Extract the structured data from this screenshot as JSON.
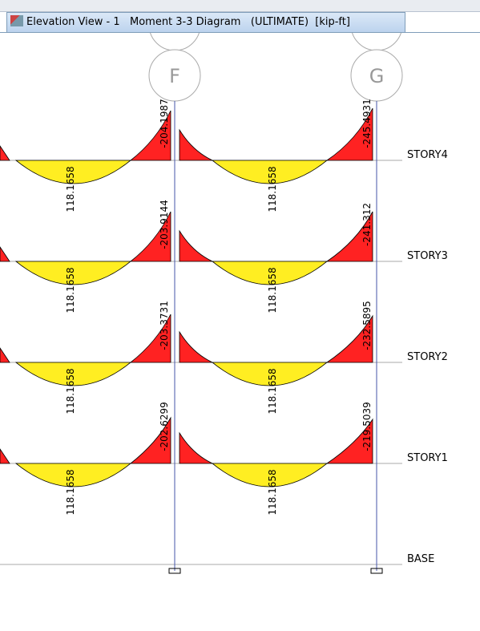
{
  "window": {
    "title": "Elevation View - 1   Moment 3-3 Diagram   (ULTIMATE)  [kip-ft]"
  },
  "grids": [
    "F",
    "G"
  ],
  "stories": [
    {
      "name": "STORY4",
      "left_mid": "118.1658",
      "f_end": "-204.1987",
      "right_mid": "118.1658",
      "g_end": "-245.4931"
    },
    {
      "name": "STORY3",
      "left_mid": "118.1658",
      "f_end": "-203.9144",
      "right_mid": "118.1658",
      "g_end": "-241.312"
    },
    {
      "name": "STORY2",
      "left_mid": "118.1658",
      "f_end": "-203.3731",
      "right_mid": "118.1658",
      "g_end": "-232.5895"
    },
    {
      "name": "STORY1",
      "left_mid": "118.1658",
      "f_end": "-202.6299",
      "right_mid": "118.1658",
      "g_end": "-219.5039"
    }
  ],
  "base": "BASE"
}
